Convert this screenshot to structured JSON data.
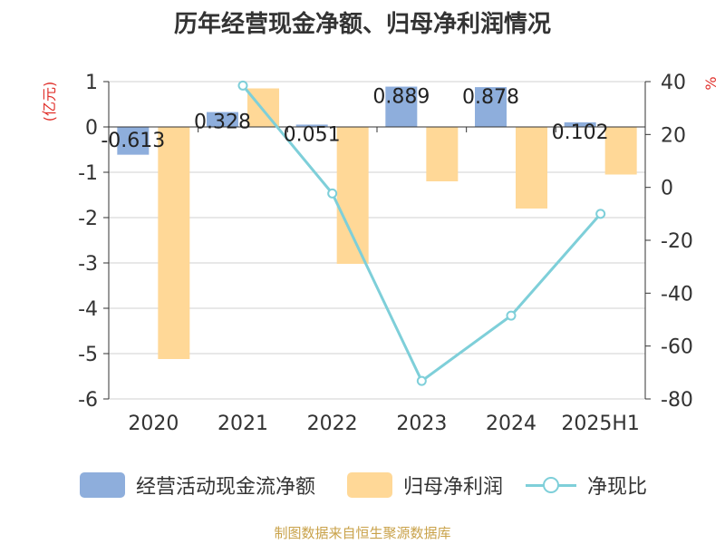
{
  "title": "历年经营现金净额、归母净利润情况",
  "source": "制图数据来自恒生聚源数据库",
  "colors": {
    "cash_flow": "#8eaedc",
    "net_profit": "#ffd897",
    "ratio": "#7ecfd9",
    "axis_unit": "#e0302b",
    "source": "#c9a24a"
  },
  "chart_data": {
    "type": "bar",
    "title": "历年经营现金净额、归母净利润情况",
    "categories": [
      "2020",
      "2021",
      "2022",
      "2023",
      "2024",
      "2025H1"
    ],
    "left_axis": {
      "label": "(亿元)",
      "ylim": [
        -6,
        1
      ],
      "ticks": [
        "1",
        "0",
        "-1",
        "-2",
        "-3",
        "-4",
        "-5",
        "-6"
      ]
    },
    "right_axis": {
      "label": "%",
      "ylim": [
        -80,
        40
      ],
      "ticks": [
        "40",
        "20",
        "0",
        "-20",
        "-40",
        "-60",
        "-80"
      ]
    },
    "grid": true,
    "legend_position": "bottom",
    "series": [
      {
        "name": "经营活动现金流净额",
        "type": "bar",
        "axis": "left",
        "values": [
          -0.613,
          0.328,
          0.051,
          0.889,
          0.878,
          0.102
        ],
        "data_labels": [
          "-0.613",
          "0.328",
          "0.051",
          "0.889",
          "0.878",
          "0.102"
        ]
      },
      {
        "name": "归母净利润",
        "type": "bar",
        "axis": "left",
        "values": [
          -5.12,
          0.85,
          -3.02,
          -1.2,
          -1.8,
          -1.05
        ]
      },
      {
        "name": "净现比",
        "type": "line",
        "axis": "right",
        "values": [
          null,
          38.5,
          -2.3,
          -73.2,
          -48.5,
          -10.0
        ]
      }
    ]
  }
}
